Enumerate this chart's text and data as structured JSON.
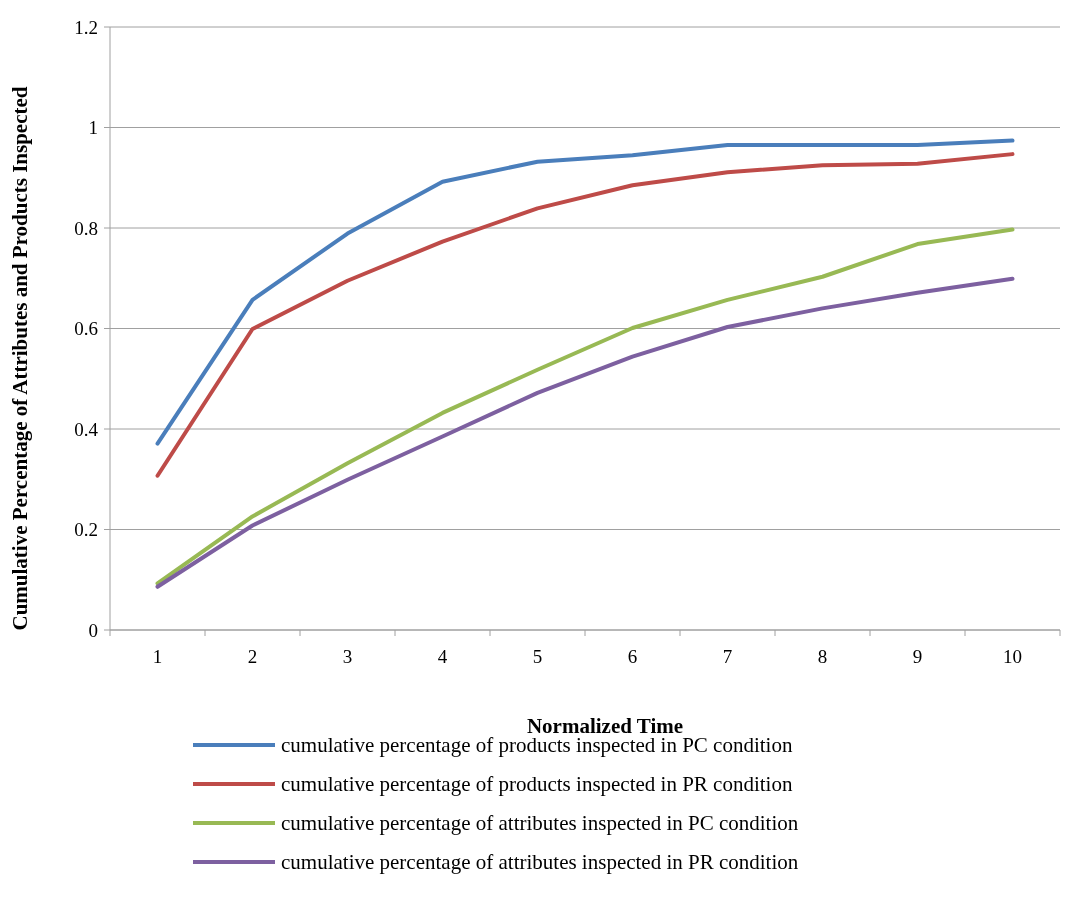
{
  "chart_data": {
    "type": "line",
    "xlabel": "Normalized Time",
    "ylabel": "Cumulative Percentage of Attributes and Products Inspected",
    "categories": [
      "1",
      "2",
      "3",
      "4",
      "5",
      "6",
      "7",
      "8",
      "9",
      "10"
    ],
    "series": [
      {
        "name": "cumulative percentage of products inspected in PC condition",
        "color": "#4a7ebb",
        "values": [
          0.371,
          0.657,
          0.789,
          0.892,
          0.932,
          0.945,
          0.965,
          0.965,
          0.965,
          0.974
        ]
      },
      {
        "name": "cumulative percentage of products inspected in PR condition",
        "color": "#be4b48",
        "values": [
          0.307,
          0.599,
          0.695,
          0.773,
          0.839,
          0.885,
          0.911,
          0.925,
          0.928,
          0.947
        ]
      },
      {
        "name": "cumulative percentage of attributes inspected in PC condition",
        "color": "#98b954",
        "values": [
          0.093,
          0.226,
          0.332,
          0.432,
          0.518,
          0.601,
          0.657,
          0.703,
          0.768,
          0.797
        ]
      },
      {
        "name": "cumulative percentage of attributes inspected in PR condition",
        "color": "#7d60a0",
        "values": [
          0.086,
          0.208,
          0.299,
          0.385,
          0.472,
          0.544,
          0.603,
          0.64,
          0.671,
          0.699
        ]
      }
    ],
    "ylim": [
      0,
      1.2
    ],
    "yticks": [
      0,
      0.2,
      0.4,
      0.6,
      0.8,
      1,
      1.2
    ],
    "grid": "y",
    "legend": "bottom",
    "marker": "none",
    "line_style": "solid"
  }
}
